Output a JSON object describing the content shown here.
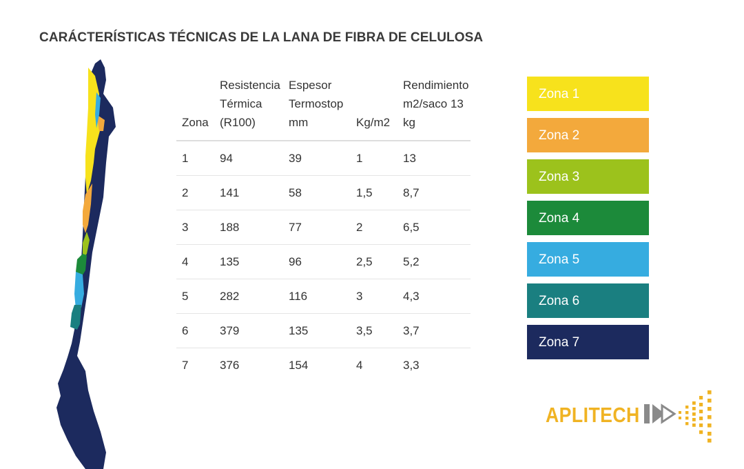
{
  "title": "CARÁCTERÍSTICAS TÉCNICAS DE LA LANA DE FIBRA DE CELULOSA",
  "table": {
    "headers": [
      [
        "Zona"
      ],
      [
        "Resistencia",
        "Térmica",
        "(R100)"
      ],
      [
        "Espesor",
        "Termostop",
        "mm"
      ],
      [
        "Kg/m2"
      ],
      [
        "Rendimiento",
        "m2/saco 13",
        "kg"
      ]
    ],
    "rows": [
      [
        "1",
        "94",
        "39",
        "1",
        "13"
      ],
      [
        "2",
        "141",
        "58",
        "1,5",
        "8,7"
      ],
      [
        "3",
        "188",
        "77",
        "2",
        "6,5"
      ],
      [
        "4",
        "135",
        "96",
        "2,5",
        "5,2"
      ],
      [
        "5",
        "282",
        "116",
        "3",
        "4,3"
      ],
      [
        "6",
        "379",
        "135",
        "3,5",
        "3,7"
      ],
      [
        "7",
        "376",
        "154",
        "4",
        "3,3"
      ]
    ]
  },
  "legend": [
    {
      "label": "Zona 1",
      "color": "#f7e21c"
    },
    {
      "label": "Zona 2",
      "color": "#f3a93c"
    },
    {
      "label": "Zona 3",
      "color": "#9cc21c"
    },
    {
      "label": "Zona 4",
      "color": "#1c8a3a"
    },
    {
      "label": "Zona 5",
      "color": "#36ace0"
    },
    {
      "label": "Zona 6",
      "color": "#1a7f80"
    },
    {
      "label": "Zona 7",
      "color": "#1c2a5e"
    }
  ],
  "map": {
    "name": "chile-zones-map"
  },
  "logo": {
    "text": "APLITECH",
    "color": "#f0b323",
    "mark_color": "#8a8a8a"
  }
}
